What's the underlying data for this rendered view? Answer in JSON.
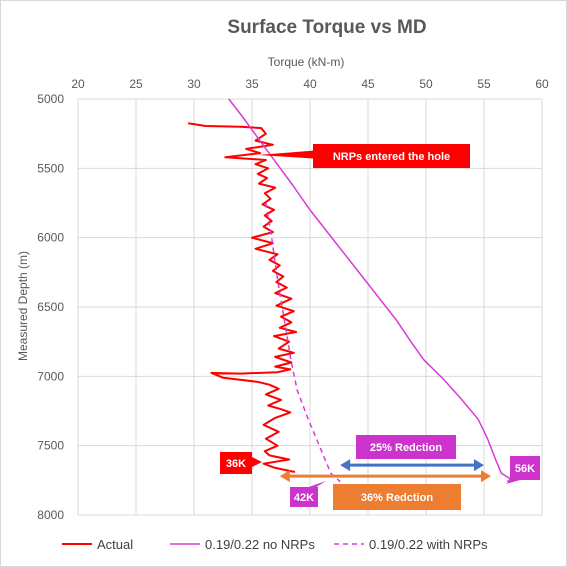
{
  "chart_data": {
    "type": "line",
    "title": "Surface Torque vs MD",
    "xlabel": "Torque (kN-m)",
    "ylabel": "Measured Depth (m)",
    "x_axis_position": "top",
    "y_inverted": true,
    "xlim": [
      20,
      60
    ],
    "ylim": [
      5000,
      8000
    ],
    "xticks": [
      "20",
      "25",
      "30",
      "35",
      "40",
      "45",
      "50",
      "55",
      "60"
    ],
    "yticks": [
      "5000",
      "5500",
      "6000",
      "6500",
      "7000",
      "7500",
      "8000"
    ],
    "grid": true,
    "legend_position": "bottom",
    "series": [
      {
        "name": "Actual",
        "color": "#ff0000",
        "dash": "solid",
        "points": [
          [
            29.5,
            5175
          ],
          [
            31.0,
            5195
          ],
          [
            34.0,
            5200
          ],
          [
            35.8,
            5210
          ],
          [
            36.2,
            5250
          ],
          [
            35.3,
            5300
          ],
          [
            36.8,
            5330
          ],
          [
            34.5,
            5360
          ],
          [
            35.7,
            5390
          ],
          [
            32.7,
            5420
          ],
          [
            36.2,
            5440
          ],
          [
            35.3,
            5470
          ],
          [
            36.4,
            5500
          ],
          [
            35.5,
            5540
          ],
          [
            36.3,
            5570
          ],
          [
            35.6,
            5610
          ],
          [
            37.0,
            5640
          ],
          [
            36.1,
            5680
          ],
          [
            36.6,
            5720
          ],
          [
            35.9,
            5760
          ],
          [
            36.9,
            5800
          ],
          [
            36.1,
            5840
          ],
          [
            36.7,
            5880
          ],
          [
            36.0,
            5920
          ],
          [
            36.8,
            5960
          ],
          [
            35.0,
            6000
          ],
          [
            36.8,
            6040
          ],
          [
            35.3,
            6080
          ],
          [
            37.2,
            6120
          ],
          [
            36.5,
            6160
          ],
          [
            37.4,
            6200
          ],
          [
            36.8,
            6240
          ],
          [
            37.7,
            6280
          ],
          [
            37.1,
            6320
          ],
          [
            38.0,
            6360
          ],
          [
            37.0,
            6400
          ],
          [
            38.4,
            6440
          ],
          [
            37.1,
            6490
          ],
          [
            38.6,
            6530
          ],
          [
            37.5,
            6570
          ],
          [
            38.4,
            6610
          ],
          [
            37.4,
            6650
          ],
          [
            38.8,
            6680
          ],
          [
            36.9,
            6710
          ],
          [
            38.2,
            6750
          ],
          [
            37.3,
            6800
          ],
          [
            38.6,
            6830
          ],
          [
            37.0,
            6860
          ],
          [
            38.4,
            6900
          ],
          [
            37.0,
            6930
          ],
          [
            38.3,
            6950
          ],
          [
            37.2,
            6970
          ],
          [
            34.0,
            6980
          ],
          [
            31.5,
            6975
          ],
          [
            32.5,
            7010
          ],
          [
            35.5,
            7040
          ],
          [
            36.5,
            7060
          ],
          [
            37.3,
            7090
          ],
          [
            36.2,
            7130
          ],
          [
            37.5,
            7170
          ],
          [
            36.4,
            7210
          ],
          [
            37.6,
            7240
          ],
          [
            38.3,
            7260
          ],
          [
            37.0,
            7300
          ],
          [
            36.0,
            7350
          ],
          [
            37.3,
            7400
          ],
          [
            36.2,
            7450
          ],
          [
            37.2,
            7500
          ],
          [
            36.1,
            7540
          ],
          [
            36.5,
            7570
          ],
          [
            38.2,
            7600
          ],
          [
            36.0,
            7630
          ],
          [
            37.0,
            7660
          ],
          [
            38.7,
            7690
          ]
        ]
      },
      {
        "name": "0.19/0.22 no NRPs",
        "color": "#d63cd6",
        "dash": "solid",
        "points": [
          [
            33.0,
            5000
          ],
          [
            34.2,
            5130
          ],
          [
            35.5,
            5280
          ],
          [
            37.0,
            5450
          ],
          [
            38.5,
            5620
          ],
          [
            40.0,
            5800
          ],
          [
            41.5,
            5960
          ],
          [
            43.0,
            6120
          ],
          [
            44.5,
            6280
          ],
          [
            46.0,
            6440
          ],
          [
            47.5,
            6600
          ],
          [
            48.7,
            6750
          ],
          [
            49.8,
            6880
          ],
          [
            51.5,
            7020
          ],
          [
            53.0,
            7160
          ],
          [
            54.5,
            7310
          ],
          [
            55.3,
            7450
          ],
          [
            56.0,
            7600
          ],
          [
            56.5,
            7700
          ],
          [
            57.3,
            7740
          ],
          [
            57.0,
            7760
          ]
        ]
      },
      {
        "name": "0.19/0.22 with NRPs",
        "color": "#d63cd6",
        "dash": "dashed",
        "points": [
          [
            36.2,
            5750
          ],
          [
            36.7,
            6000
          ],
          [
            37.2,
            6300
          ],
          [
            37.8,
            6600
          ],
          [
            38.4,
            6900
          ],
          [
            38.9,
            7100
          ],
          [
            39.8,
            7300
          ],
          [
            40.8,
            7500
          ],
          [
            41.8,
            7700
          ],
          [
            42.6,
            7760
          ]
        ]
      }
    ],
    "annotations": [
      {
        "text": "NRPs entered the hole",
        "bg": "#ff0000",
        "fg": "#ffffff"
      },
      {
        "text": "36K",
        "bg": "#ff0000",
        "fg": "#ffffff"
      },
      {
        "text": "42K",
        "bg": "#cc33cc",
        "fg": "#ffffff"
      },
      {
        "text": "56K",
        "bg": "#cc33cc",
        "fg": "#ffffff"
      },
      {
        "text": "25% Redction",
        "bg": "#cc33cc",
        "fg": "#ffffff"
      },
      {
        "text": "36% Redction",
        "bg": "#ed7d31",
        "fg": "#ffffff"
      }
    ],
    "arrows": [
      {
        "color": "#4472c4",
        "from_x": 42.6,
        "to_x": 55.0,
        "at_y": 7640
      },
      {
        "color": "#ed7d31",
        "from_x": 37.4,
        "to_x": 55.6,
        "at_y": 7720
      }
    ]
  }
}
